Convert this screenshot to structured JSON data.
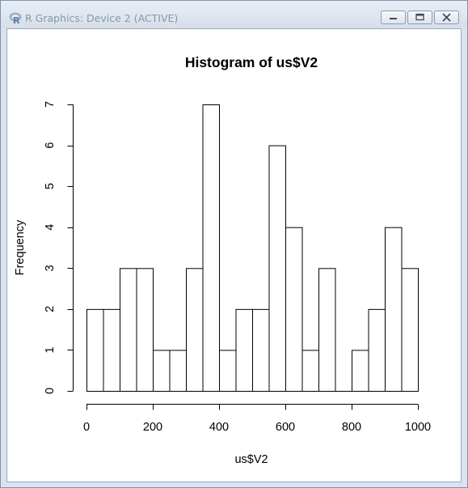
{
  "window": {
    "title": "R Graphics: Device 2 (ACTIVE)",
    "controls": [
      "minimize",
      "maximize",
      "close"
    ]
  },
  "chart_data": {
    "type": "bar",
    "title": "Histogram of us$V2",
    "xlabel": "us$V2",
    "ylabel": "Frequency",
    "bin_edges": [
      0,
      50,
      100,
      150,
      200,
      250,
      300,
      350,
      400,
      450,
      500,
      550,
      600,
      650,
      700,
      750,
      800,
      850,
      900,
      950,
      1000
    ],
    "values": [
      2,
      2,
      3,
      3,
      1,
      1,
      3,
      7,
      1,
      2,
      2,
      6,
      4,
      1,
      3,
      0,
      1,
      2,
      4,
      3
    ],
    "xlim": [
      0,
      1000
    ],
    "ylim": [
      0,
      7
    ],
    "xticks": [
      0,
      200,
      400,
      600,
      800,
      1000
    ],
    "xtick_labels": [
      "0",
      "200",
      "400",
      "600",
      "800",
      "1000"
    ],
    "yticks": [
      0,
      1,
      2,
      3,
      4,
      5,
      6,
      7
    ],
    "ytick_labels": [
      "0",
      "1",
      "2",
      "3",
      "4",
      "5",
      "6",
      "7"
    ],
    "grid": false,
    "bar_fill": "#ffffff",
    "bar_stroke": "#000000"
  }
}
